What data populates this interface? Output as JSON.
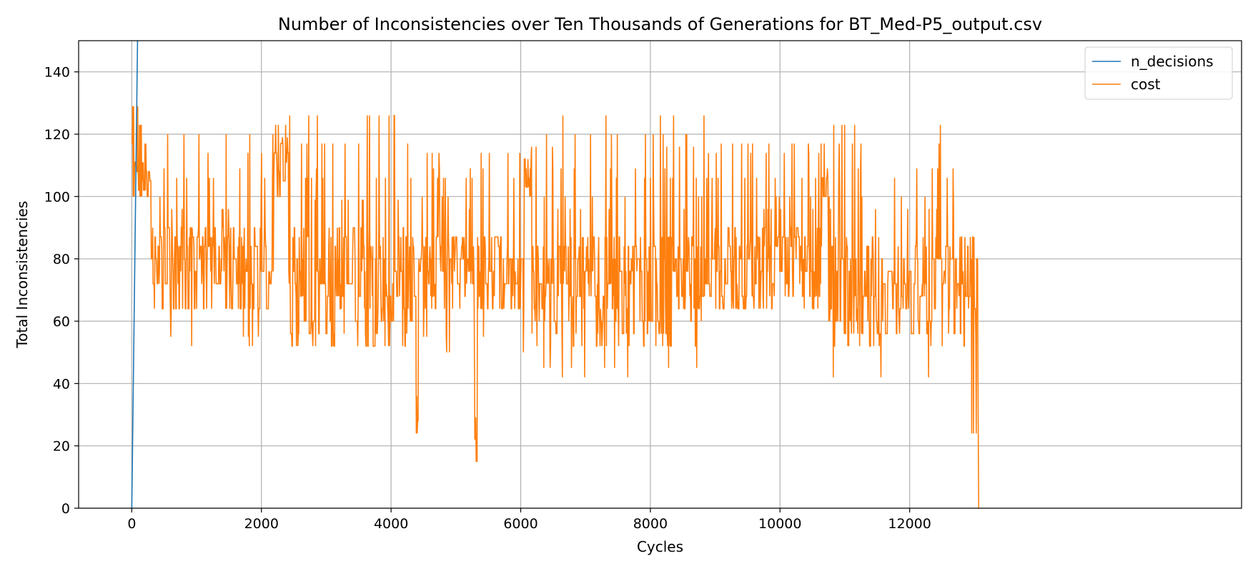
{
  "chart_data": {
    "type": "line",
    "title": "Number of Inconsistencies over Ten Thousands of Generations for BT_Med-P5_output.csv",
    "xlabel": "Cycles",
    "ylabel": "Total Inconsistencies",
    "xlim": [
      -820,
      17120
    ],
    "ylim": [
      0,
      150
    ],
    "xticks": [
      0,
      2000,
      4000,
      6000,
      8000,
      10000,
      12000
    ],
    "yticks": [
      0,
      20,
      40,
      60,
      80,
      100,
      120,
      140
    ],
    "grid": true,
    "legend_position": "top-right",
    "series": [
      {
        "name": "n_decisions",
        "color": "#1f77b4",
        "x": [
          0,
          90
        ],
        "y": [
          0,
          152
        ]
      },
      {
        "name": "cost",
        "color": "#ff7f0e",
        "generator": {
          "seed": 7,
          "x_end": 13060,
          "step": 7,
          "segments": [
            {
              "to": 280,
              "levels": [
                100,
                102,
                105,
                108,
                111,
                114,
                117
              ],
              "spikes": [
                119,
                123,
                129
              ]
            },
            {
              "to": 2180,
              "levels": [
                64,
                72,
                76,
                80,
                84,
                87,
                90
              ],
              "spikes": [
                52,
                55,
                96,
                100,
                106,
                109,
                114,
                120
              ]
            },
            {
              "to": 2410,
              "levels": [
                100,
                102,
                105,
                108,
                111,
                114,
                117
              ],
              "spikes": [
                119,
                123
              ]
            },
            {
              "to": 4370,
              "levels": [
                52,
                56,
                60,
                64,
                68,
                72,
                76,
                80,
                84,
                87,
                90
              ],
              "spikes": [
                99,
                106,
                109,
                117,
                126
              ]
            },
            {
              "to": 4420,
              "levels": [
                24,
                28,
                36
              ],
              "spikes": [
                24
              ]
            },
            {
              "to": 5290,
              "levels": [
                64,
                68,
                72,
                76,
                80,
                84,
                87
              ],
              "spikes": [
                50,
                55,
                96,
                100,
                106,
                109,
                114
              ]
            },
            {
              "to": 5330,
              "levels": [
                15,
                22,
                29,
                36
              ],
              "spikes": [
                15
              ]
            },
            {
              "to": 6050,
              "levels": [
                64,
                68,
                72,
                76,
                80,
                84,
                87
              ],
              "spikes": [
                50,
                55,
                96,
                100,
                106,
                109,
                114
              ]
            },
            {
              "to": 6160,
              "levels": [
                100,
                103,
                106,
                109,
                112
              ],
              "spikes": [
                117,
                123
              ]
            },
            {
              "to": 8870,
              "levels": [
                52,
                56,
                60,
                64,
                68,
                72,
                76,
                80,
                84,
                87
              ],
              "spikes": [
                42,
                45,
                96,
                100,
                106,
                109,
                116,
                120,
                126
              ]
            },
            {
              "to": 10640,
              "levels": [
                64,
                68,
                72,
                76,
                80,
                84,
                87,
                90
              ],
              "spikes": [
                96,
                100,
                106,
                109,
                114,
                117
              ]
            },
            {
              "to": 10740,
              "levels": [
                100,
                103,
                106,
                109,
                112
              ],
              "spikes": [
                117,
                123
              ]
            },
            {
              "to": 12940,
              "levels": [
                52,
                56,
                60,
                64,
                68,
                72,
                76,
                80,
                84,
                87
              ],
              "spikes": [
                42,
                96,
                100,
                106,
                109,
                117,
                123
              ]
            },
            {
              "to": 13060,
              "levels": [
                24,
                36,
                55,
                64,
                72,
                80,
                87
              ],
              "spikes": [
                24
              ]
            }
          ],
          "end_value": 0
        }
      }
    ]
  }
}
